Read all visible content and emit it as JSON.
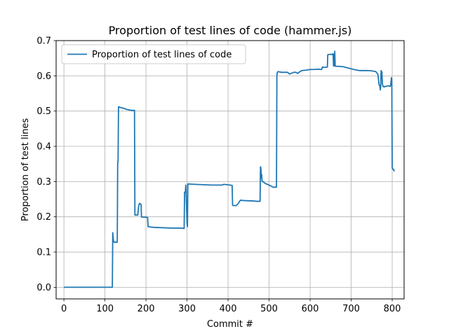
{
  "chart_data": {
    "type": "line",
    "title": "Proportion of test lines of code (hammer.js)",
    "xlabel": "Commit #",
    "ylabel": "Proportion of test lines",
    "xlim": [
      -19,
      829
    ],
    "ylim": [
      -0.033,
      0.7
    ],
    "xticks": [
      0,
      100,
      200,
      300,
      400,
      500,
      600,
      700,
      800
    ],
    "yticks": [
      0.0,
      0.1,
      0.2,
      0.3,
      0.4,
      0.5,
      0.6,
      0.7
    ],
    "ytick_labels": [
      "0.0",
      "0.1",
      "0.2",
      "0.3",
      "0.4",
      "0.5",
      "0.6",
      "0.7"
    ],
    "grid": true,
    "legend_position": "upper-left",
    "colors": {
      "series": "#1f77b4",
      "grid": "#b0b0b0"
    },
    "series": [
      {
        "name": "Proportion of test lines of code",
        "x": [
          0,
          117,
          118,
          119,
          120,
          121,
          122,
          123,
          130,
          131,
          132,
          133,
          134,
          138,
          145,
          150,
          155,
          160,
          165,
          172,
          173,
          174,
          180,
          182,
          184,
          186,
          188,
          189,
          190,
          200,
          204,
          205,
          210,
          220,
          240,
          260,
          285,
          293,
          294,
          296,
          297,
          298,
          300,
          301,
          302,
          303,
          304,
          305,
          320,
          340,
          360,
          380,
          385,
          390,
          405,
          410,
          411,
          412,
          420,
          425,
          430,
          440,
          460,
          470,
          478,
          479,
          480,
          481,
          482,
          483,
          485,
          490,
          500,
          510,
          518,
          519,
          520,
          522,
          530,
          545,
          550,
          560,
          565,
          570,
          575,
          580,
          590,
          600,
          610,
          620,
          625,
          628,
          630,
          635,
          642,
          643,
          648,
          652,
          654,
          656,
          657,
          658,
          659,
          660,
          661,
          662,
          663,
          665,
          670,
          680,
          690,
          700,
          710,
          720,
          740,
          750,
          760,
          765,
          768,
          770,
          771,
          772,
          773,
          775,
          776,
          777,
          778,
          779,
          780,
          782,
          785,
          790,
          795,
          796,
          797,
          798,
          799,
          800,
          801,
          803,
          805,
          806
        ],
        "y": [
          0.0,
          0.0,
          0.0,
          0.155,
          0.14,
          0.13,
          0.128,
          0.128,
          0.128,
          0.35,
          0.36,
          0.512,
          0.512,
          0.51,
          0.508,
          0.506,
          0.504,
          0.503,
          0.502,
          0.502,
          0.205,
          0.205,
          0.205,
          0.23,
          0.238,
          0.237,
          0.235,
          0.2,
          0.199,
          0.199,
          0.198,
          0.172,
          0.171,
          0.17,
          0.169,
          0.168,
          0.168,
          0.167,
          0.27,
          0.27,
          0.29,
          0.26,
          0.18,
          0.172,
          0.29,
          0.294,
          0.294,
          0.293,
          0.292,
          0.291,
          0.29,
          0.29,
          0.29,
          0.292,
          0.29,
          0.289,
          0.233,
          0.232,
          0.232,
          0.238,
          0.247,
          0.246,
          0.245,
          0.244,
          0.244,
          0.342,
          0.338,
          0.31,
          0.32,
          0.3,
          0.3,
          0.295,
          0.29,
          0.284,
          0.284,
          0.6,
          0.61,
          0.612,
          0.61,
          0.61,
          0.605,
          0.61,
          0.61,
          0.607,
          0.612,
          0.615,
          0.616,
          0.618,
          0.618,
          0.619,
          0.618,
          0.618,
          0.625,
          0.624,
          0.625,
          0.66,
          0.661,
          0.661,
          0.66,
          0.663,
          0.628,
          0.66,
          0.628,
          0.67,
          0.63,
          0.627,
          0.627,
          0.627,
          0.627,
          0.626,
          0.623,
          0.62,
          0.617,
          0.615,
          0.615,
          0.614,
          0.612,
          0.605,
          0.575,
          0.57,
          0.56,
          0.57,
          0.615,
          0.61,
          0.58,
          0.572,
          0.57,
          0.57,
          0.568,
          0.57,
          0.57,
          0.572,
          0.57,
          0.573,
          0.58,
          0.595,
          0.59,
          0.34,
          0.335,
          0.335,
          0.33,
          0.33
        ]
      }
    ]
  }
}
